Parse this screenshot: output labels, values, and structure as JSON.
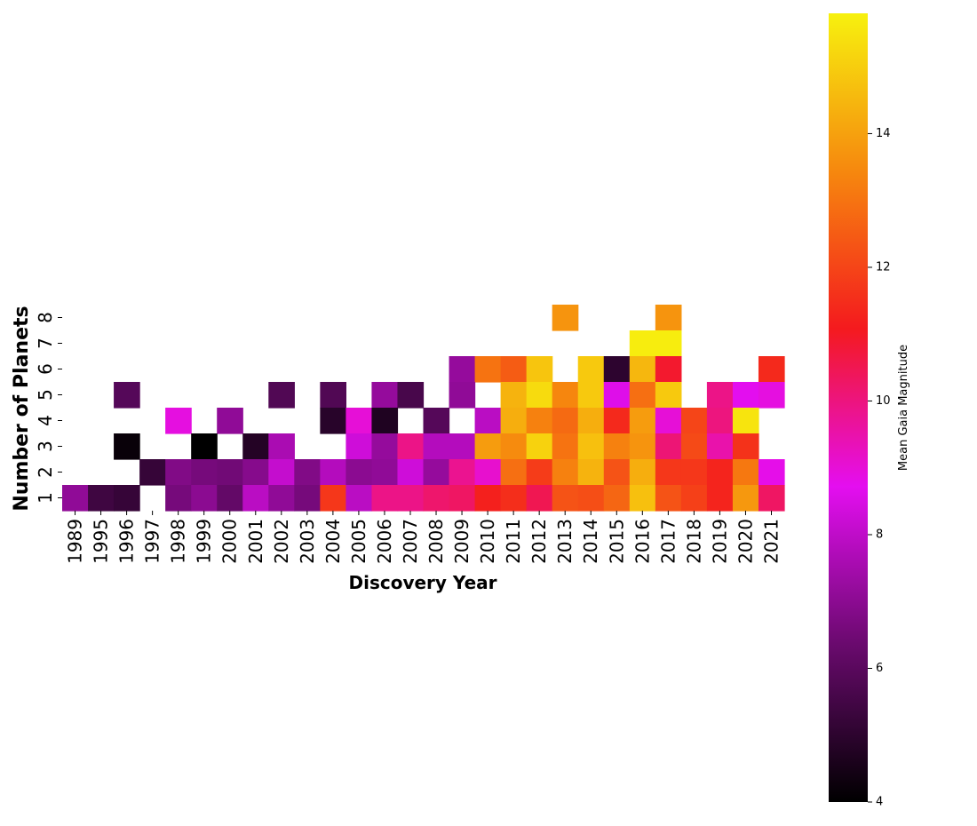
{
  "chart_data": {
    "type": "heatmap",
    "xlabel": "Discovery Year",
    "ylabel": "Number of Planets",
    "x": [
      "1989",
      "1995",
      "1996",
      "1997",
      "1998",
      "1999",
      "2000",
      "2001",
      "2002",
      "2003",
      "2004",
      "2005",
      "2006",
      "2007",
      "2008",
      "2009",
      "2010",
      "2011",
      "2012",
      "2013",
      "2014",
      "2015",
      "2016",
      "2017",
      "2018",
      "2019",
      "2020",
      "2021"
    ],
    "y": [
      "8",
      "7",
      "6",
      "5",
      "4",
      "3",
      "2",
      "1"
    ],
    "values": [
      [
        null,
        null,
        null,
        null,
        null,
        null,
        null,
        null,
        null,
        null,
        null,
        null,
        null,
        null,
        null,
        null,
        null,
        null,
        null,
        13.7,
        null,
        null,
        null,
        13.7,
        null,
        null,
        null,
        null
      ],
      [
        null,
        null,
        null,
        null,
        null,
        null,
        null,
        null,
        null,
        null,
        null,
        null,
        null,
        null,
        null,
        null,
        null,
        null,
        null,
        null,
        null,
        null,
        15.7,
        15.7,
        null,
        null,
        null,
        null
      ],
      [
        null,
        null,
        null,
        null,
        null,
        null,
        null,
        null,
        null,
        null,
        null,
        null,
        null,
        null,
        null,
        7.2,
        13.0,
        12.5,
        14.8,
        null,
        14.9,
        5.0,
        14.5,
        10.9,
        null,
        null,
        null,
        11.4
      ],
      [
        null,
        null,
        5.9,
        null,
        null,
        null,
        null,
        null,
        5.8,
        null,
        5.8,
        null,
        7.2,
        5.6,
        null,
        7.1,
        null,
        14.4,
        15.3,
        13.4,
        14.9,
        8.6,
        12.9,
        14.9,
        null,
        9.9,
        8.7,
        8.9
      ],
      [
        null,
        null,
        null,
        null,
        8.9,
        null,
        7.1,
        null,
        null,
        null,
        4.9,
        9.0,
        4.7,
        null,
        5.9,
        null,
        7.9,
        14.3,
        13.3,
        12.8,
        14.3,
        11.4,
        13.9,
        9.0,
        12.0,
        10.0,
        15.5,
        null
      ],
      [
        null,
        null,
        4.2,
        null,
        null,
        4.0,
        null,
        4.8,
        7.6,
        null,
        null,
        8.3,
        7.2,
        9.9,
        7.8,
        7.8,
        13.9,
        13.5,
        15.1,
        13.0,
        14.7,
        13.3,
        13.7,
        10.1,
        12.1,
        9.5,
        11.6,
        null
      ],
      [
        null,
        null,
        null,
        5.2,
        6.8,
        6.6,
        6.5,
        6.9,
        8.1,
        6.8,
        7.8,
        7.0,
        7.1,
        8.3,
        7.2,
        9.8,
        9.1,
        12.9,
        11.8,
        13.3,
        14.4,
        12.3,
        14.3,
        11.7,
        11.7,
        11.3,
        13.1,
        8.8
      ],
      [
        7.1,
        5.4,
        5.2,
        null,
        6.6,
        7.0,
        6.2,
        7.9,
        7.1,
        6.6,
        11.7,
        7.9,
        9.9,
        9.9,
        10.2,
        10.3,
        11.2,
        11.5,
        10.5,
        12.3,
        12.2,
        12.7,
        14.7,
        12.3,
        11.9,
        11.3,
        13.8,
        10.3
      ]
    ],
    "colorbar": {
      "label": "Mean Gaia Magnitude",
      "min": 4,
      "max": 15.8,
      "ticks": [
        "4",
        "6",
        "8",
        "10",
        "12",
        "14"
      ],
      "colormap": "gnuplot2-like (black-purple-magenta-red-orange-yellow)"
    },
    "colors": {
      "stops": [
        "#000000",
        "#6a0a6e",
        "#e40ef0",
        "#f41a1e",
        "#f6880e",
        "#f7f10e"
      ]
    }
  }
}
